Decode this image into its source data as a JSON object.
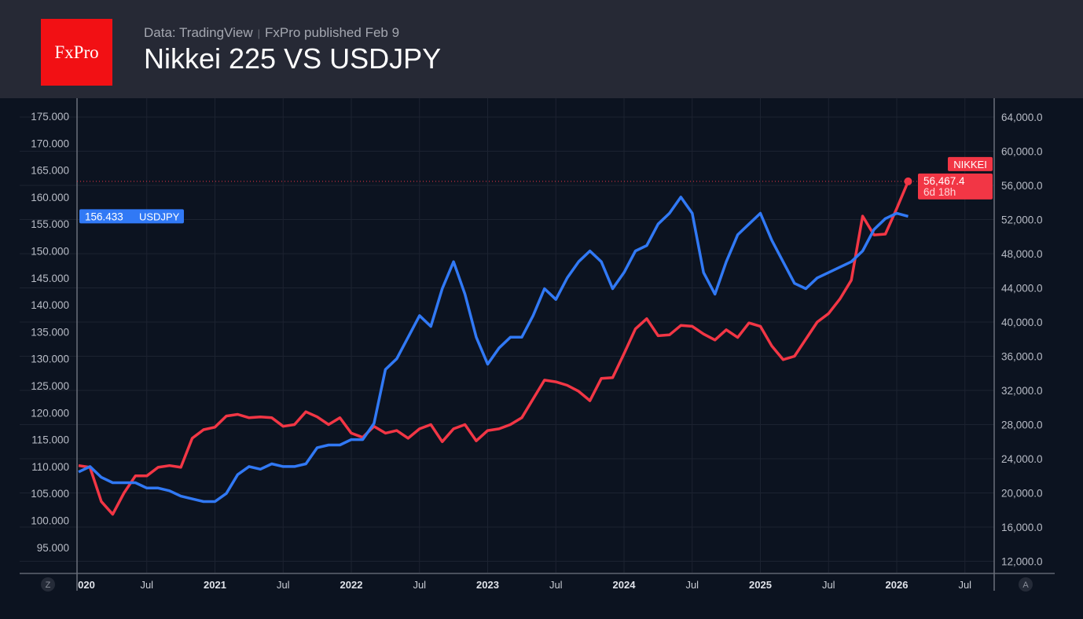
{
  "header": {
    "logo": "FxPro",
    "source": "Data: TradingView",
    "published": "FxPro published Feb 9",
    "title": "Nikkei 225 VS USDJPY"
  },
  "colors": {
    "usdjpy": "#3179f5",
    "nikkei": "#f23645",
    "background": "#0c1320",
    "header": "#262935"
  },
  "chart_data": {
    "type": "line",
    "title": "Nikkei 225 VS USDJPY",
    "x_ticks": [
      "020",
      "Jul",
      "2021",
      "Jul",
      "2022",
      "Jul",
      "2023",
      "Jul",
      "2024",
      "Jul",
      "2025",
      "Jul",
      "2026",
      "Jul"
    ],
    "left_axis": {
      "ticks": [
        "175.000",
        "170.000",
        "165.000",
        "160.000",
        "155.000",
        "150.000",
        "145.000",
        "140.000",
        "135.000",
        "130.000",
        "125.000",
        "120.000",
        "115.000",
        "110.000",
        "105.000",
        "100.000",
        "95.000"
      ],
      "range": [
        92,
        178
      ]
    },
    "right_axis": {
      "ticks": [
        "64,000.0",
        "60,000.0",
        "56,000.0",
        "52,000.0",
        "48,000.0",
        "44,000.0",
        "40,000.0",
        "36,000.0",
        "32,000.0",
        "28,000.0",
        "24,000.0",
        "20,000.0",
        "16,000.0",
        "12,000.0"
      ],
      "range": [
        10500,
        65500
      ]
    },
    "grid": true,
    "x": [
      "2020-01",
      "2020-02",
      "2020-03",
      "2020-04",
      "2020-05",
      "2020-06",
      "2020-07",
      "2020-08",
      "2020-09",
      "2020-10",
      "2020-11",
      "2020-12",
      "2021-01",
      "2021-02",
      "2021-03",
      "2021-04",
      "2021-05",
      "2021-06",
      "2021-07",
      "2021-08",
      "2021-09",
      "2021-10",
      "2021-11",
      "2021-12",
      "2022-01",
      "2022-02",
      "2022-03",
      "2022-04",
      "2022-05",
      "2022-06",
      "2022-07",
      "2022-08",
      "2022-09",
      "2022-10",
      "2022-11",
      "2022-12",
      "2023-01",
      "2023-02",
      "2023-03",
      "2023-04",
      "2023-05",
      "2023-06",
      "2023-07",
      "2023-08",
      "2023-09",
      "2023-10",
      "2023-11",
      "2023-12",
      "2024-01",
      "2024-02",
      "2024-03",
      "2024-04",
      "2024-05",
      "2024-06",
      "2024-07",
      "2024-08",
      "2024-09",
      "2024-10",
      "2024-11",
      "2024-12",
      "2025-01",
      "2025-02",
      "2025-03",
      "2025-04",
      "2025-05",
      "2025-06",
      "2025-07",
      "2025-08",
      "2025-09",
      "2025-10",
      "2025-11",
      "2025-12",
      "2026-01",
      "2026-02"
    ],
    "series": [
      {
        "name": "USDJPY",
        "axis": "left",
        "last_label": "156.433",
        "values": [
          109,
          110,
          108,
          107,
          107,
          107,
          106,
          106,
          105.5,
          104.5,
          104,
          103.5,
          103.5,
          105,
          108.5,
          110,
          109.5,
          110.5,
          110,
          110,
          110.5,
          113.5,
          114,
          114,
          115,
          115,
          118,
          128,
          130,
          134,
          138,
          136,
          143,
          148,
          142,
          134,
          129,
          132,
          134,
          134,
          138,
          143,
          141,
          145,
          148,
          150,
          148,
          143,
          146,
          150,
          151,
          155,
          157,
          160,
          157,
          146,
          142,
          148,
          153,
          155,
          157,
          152,
          148,
          144,
          143,
          145,
          146,
          147,
          148,
          150,
          154,
          156,
          157,
          156.433
        ]
      },
      {
        "name": "NIKKEI",
        "axis": "right",
        "last_label": "56,467.4",
        "countdown": "6d 18h",
        "values": [
          23200,
          23000,
          19000,
          17500,
          20000,
          22000,
          22000,
          23000,
          23200,
          23000,
          26400,
          27400,
          27700,
          29000,
          29200,
          28800,
          28900,
          28800,
          27800,
          28000,
          29500,
          28900,
          28000,
          28800,
          27000,
          26500,
          27800,
          27000,
          27300,
          26400,
          27500,
          28000,
          26000,
          27500,
          28000,
          26100,
          27300,
          27500,
          28000,
          28800,
          31000,
          33200,
          33000,
          32600,
          31900,
          30800,
          33400,
          33500,
          36300,
          39200,
          40400,
          38400,
          38500,
          39600,
          39500,
          38600,
          37900,
          39100,
          38200,
          39900,
          39500,
          37200,
          35600,
          36000,
          38000,
          40000,
          41000,
          42700,
          44900,
          52400,
          50200,
          50300,
          53300,
          56467.4
        ]
      }
    ]
  },
  "buttons": {
    "left": "Z",
    "right": "A"
  }
}
